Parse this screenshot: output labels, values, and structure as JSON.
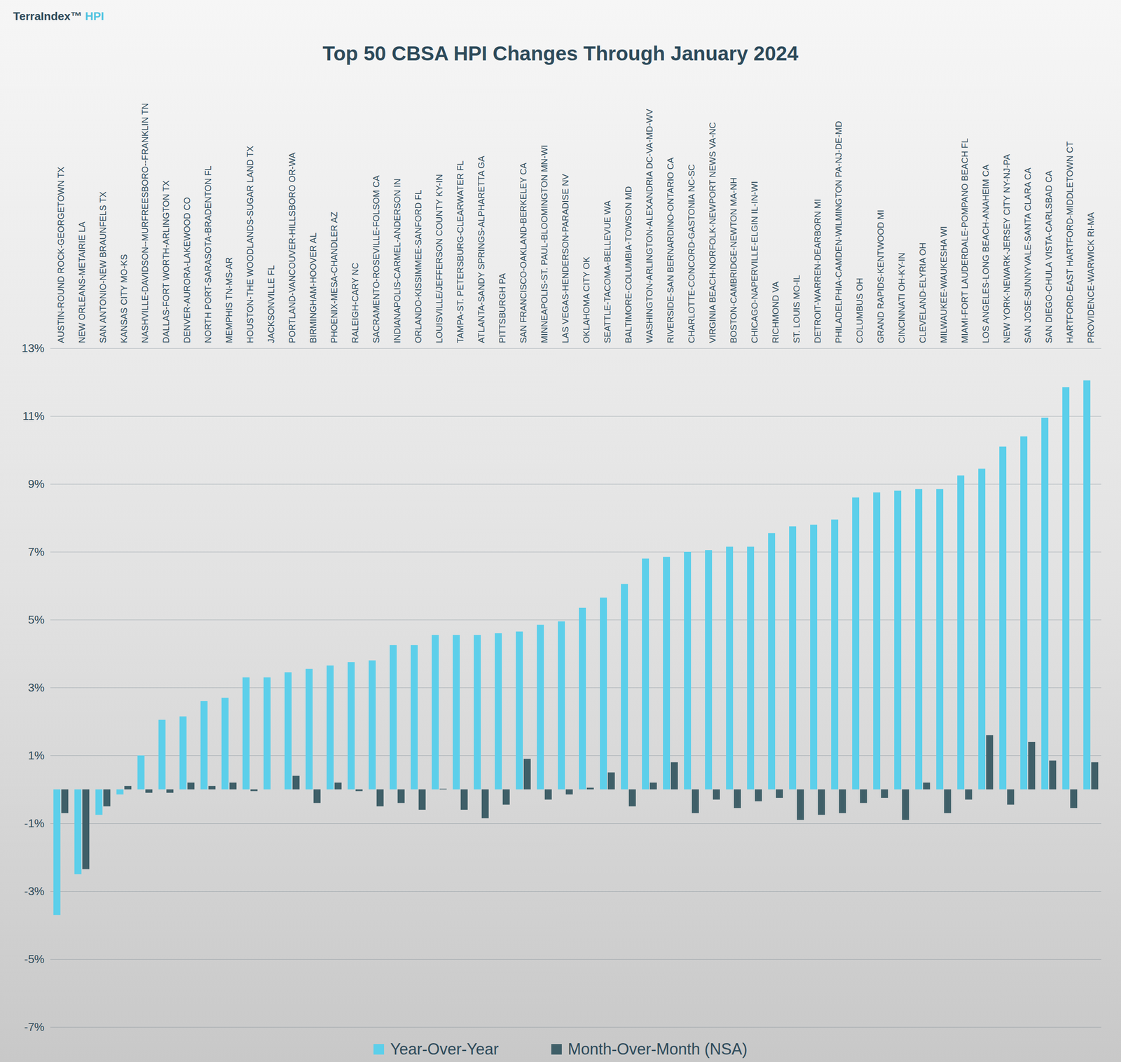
{
  "chart_data": {
    "type": "bar",
    "title": "Top 50 CBSA HPI Changes Through January 2024",
    "logo_text": "TerraIndex™ HPI",
    "categories": [
      "AUSTIN-ROUND ROCK-GEORGETOWN TX",
      "NEW ORLEANS-METAIRIE LA",
      "SAN ANTONIO-NEW BRAUNFELS TX",
      "KANSAS CITY MO-KS",
      "NASHVILLE-DAVIDSON--MURFREESBORO--FRANKLIN TN",
      "DALLAS-FORT WORTH-ARLINGTON TX",
      "DENVER-AURORA-LAKEWOOD CO",
      "NORTH PORT-SARASOTA-BRADENTON FL",
      "MEMPHIS TN-MS-AR",
      "HOUSTON-THE WOODLANDS-SUGAR LAND TX",
      "JACKSONVILLE FL",
      "PORTLAND-VANCOUVER-HILLSBORO OR-WA",
      "BIRMINGHAM-HOOVER AL",
      "PHOENIX-MESA-CHANDLER AZ",
      "RALEIGH-CARY NC",
      "SACRAMENTO-ROSEVILLE-FOLSOM CA",
      "INDIANAPOLIS-CARMEL-ANDERSON IN",
      "ORLANDO-KISSIMMEE-SANFORD FL",
      "LOUISVILLE/JEFFERSON COUNTY KY-IN",
      "TAMPA-ST. PETERSBURG-CLEARWATER FL",
      "ATLANTA-SANDY SPRINGS-ALPHARETTA GA",
      "PITTSBURGH PA",
      "SAN FRANCISCO-OAKLAND-BERKELEY CA",
      "MINNEAPOLIS-ST. PAUL-BLOOMINGTON MN-WI",
      "LAS VEGAS-HENDERSON-PARADISE NV",
      "OKLAHOMA CITY OK",
      "SEATTLE-TACOMA-BELLEVUE WA",
      "BALTIMORE-COLUMBIA-TOWSON MD",
      "WASHINGTON-ARLINGTON-ALEXANDRIA DC-VA-MD-WV",
      "RIVERSIDE-SAN BERNARDINO-ONTARIO CA",
      "CHARLOTTE-CONCORD-GASTONIA NC-SC",
      "VIRGINIA BEACH-NORFOLK-NEWPORT NEWS VA-NC",
      "BOSTON-CAMBRIDGE-NEWTON MA-NH",
      "CHICAGO-NAPERVILLE-ELGIN IL-IN-WI",
      "RICHMOND VA",
      "ST. LOUIS MO-IL",
      "DETROIT-WARREN-DEARBORN MI",
      "PHILADELPHIA-CAMDEN-WILMINGTON PA-NJ-DE-MD",
      "COLUMBUS OH",
      "GRAND RAPIDS-KENTWOOD MI",
      "CINCINNATI OH-KY-IN",
      "CLEVELAND-ELYRIA OH",
      "MILWAUKEE-WAUKESHA WI",
      "MIAMI-FORT LAUDERDALE-POMPANO BEACH FL",
      "LOS ANGELES-LONG BEACH-ANAHEIM CA",
      "NEW YORK-NEWARK-JERSEY CITY NY-NJ-PA",
      "SAN JOSE-SUNNYVALE-SANTA CLARA CA",
      "SAN DIEGO-CHULA VISTA-CARLSBAD CA",
      "HARTFORD-EAST HARTFORD-MIDDLETOWN CT",
      "PROVIDENCE-WARWICK RI-MA"
    ],
    "series": [
      {
        "name": "Year-Over-Year",
        "color": "#5ccfea",
        "values": [
          -3.7,
          -2.5,
          -0.75,
          -0.15,
          1.0,
          2.05,
          2.15,
          2.6,
          2.7,
          3.3,
          3.3,
          3.45,
          3.55,
          3.65,
          3.75,
          3.8,
          4.25,
          4.25,
          4.55,
          4.55,
          4.55,
          4.6,
          4.65,
          4.85,
          4.95,
          5.35,
          5.65,
          6.05,
          6.8,
          6.85,
          7.0,
          7.05,
          7.15,
          7.15,
          7.55,
          7.75,
          7.8,
          7.95,
          8.6,
          8.75,
          8.8,
          8.85,
          8.85,
          9.25,
          9.45,
          10.1,
          10.4,
          10.95,
          11.85,
          12.05
        ]
      },
      {
        "name": "Month-Over-Month (NSA)",
        "color": "#3f5f68",
        "values": [
          -0.7,
          -2.35,
          -0.5,
          0.1,
          -0.1,
          -0.1,
          0.2,
          0.1,
          0.2,
          -0.05,
          0.0,
          0.4,
          -0.4,
          0.2,
          -0.05,
          -0.5,
          -0.4,
          -0.6,
          0.02,
          -0.6,
          -0.85,
          -0.45,
          0.9,
          -0.3,
          -0.15,
          0.05,
          0.5,
          -0.5,
          0.2,
          0.8,
          -0.7,
          -0.3,
          -0.55,
          -0.35,
          -0.25,
          -0.9,
          -0.75,
          -0.7,
          -0.4,
          -0.25,
          -0.9,
          0.2,
          -0.7,
          -0.3,
          1.6,
          -0.45,
          1.4,
          0.85,
          -0.55,
          0.8
        ]
      }
    ],
    "ylim": [
      -7,
      13
    ],
    "yticks": [
      {
        "value": -7,
        "label": "-7%"
      },
      {
        "value": -5,
        "label": "-5%"
      },
      {
        "value": -3,
        "label": "-3%"
      },
      {
        "value": -1,
        "label": "-1%"
      },
      {
        "value": 1,
        "label": "1%"
      },
      {
        "value": 3,
        "label": "3%"
      },
      {
        "value": 5,
        "label": "5%"
      },
      {
        "value": 7,
        "label": "7%"
      },
      {
        "value": 9,
        "label": "9%"
      },
      {
        "value": 11,
        "label": "11%"
      },
      {
        "value": 13,
        "label": "13%"
      }
    ],
    "grid": true,
    "legend": "bottom"
  }
}
